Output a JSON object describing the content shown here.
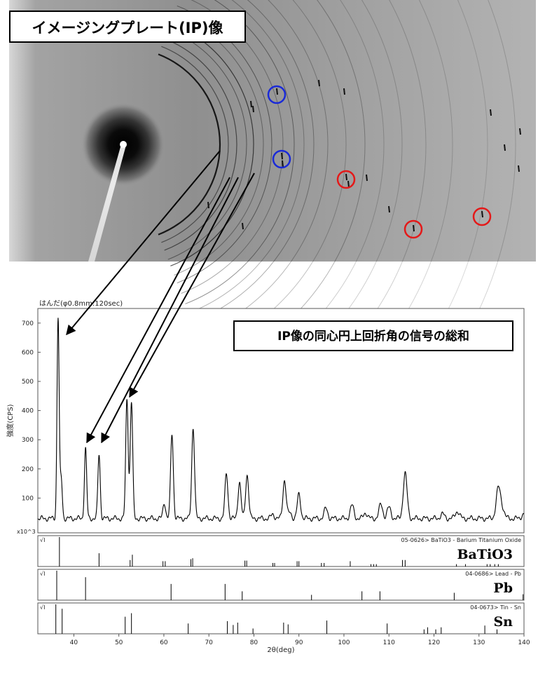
{
  "ip_image": {
    "title": "イメージングプレート(IP)像"
  },
  "chart_data": [
    {
      "type": "line",
      "title": "はんだ(φ0.8mm:120sec)",
      "annotation": "IP像の同心円上回折角の信号の総和",
      "xlabel": "2θ(deg)",
      "ylabel": "強度(CPS)",
      "yunit": "x10^3",
      "xlim": [
        32,
        140
      ],
      "ylim": [
        0,
        750
      ],
      "xticks": [
        40,
        50,
        60,
        70,
        80,
        90,
        100,
        110,
        120,
        130,
        140
      ],
      "yticks": [
        100,
        200,
        300,
        400,
        500,
        600,
        700
      ],
      "baseline": 30,
      "peaks": [
        {
          "x": 36.5,
          "y": 720
        },
        {
          "x": 37.2,
          "y": 165
        },
        {
          "x": 42.6,
          "y": 270
        },
        {
          "x": 45.6,
          "y": 250
        },
        {
          "x": 51.8,
          "y": 440
        },
        {
          "x": 52.8,
          "y": 430
        },
        {
          "x": 60.1,
          "y": 85
        },
        {
          "x": 61.8,
          "y": 320
        },
        {
          "x": 66.5,
          "y": 342
        },
        {
          "x": 73.9,
          "y": 183
        },
        {
          "x": 76.8,
          "y": 155
        },
        {
          "x": 78.5,
          "y": 180
        },
        {
          "x": 84.2,
          "y": 45
        },
        {
          "x": 86.8,
          "y": 162
        },
        {
          "x": 88.0,
          "y": 50
        },
        {
          "x": 90.0,
          "y": 112
        },
        {
          "x": 96.0,
          "y": 65
        },
        {
          "x": 101.8,
          "y": 75
        },
        {
          "x": 104.8,
          "y": 50
        },
        {
          "x": 108.2,
          "y": 78
        },
        {
          "x": 110.0,
          "y": 68
        },
        {
          "x": 113.6,
          "y": 185
        },
        {
          "x": 121.9,
          "y": 45
        },
        {
          "x": 125.2,
          "y": 55
        },
        {
          "x": 134.3,
          "y": 132
        },
        {
          "x": 135.2,
          "y": 60
        },
        {
          "x": 140.0,
          "y": 45
        }
      ],
      "reference_patterns": [
        {
          "label": "05-0626> BaTiO3 - Barium Titanium Oxide",
          "name": "BaTiO3",
          "y_label": "√I",
          "lines": [
            {
              "x": 36.8,
              "h": 1.0
            },
            {
              "x": 45.6,
              "h": 0.45
            },
            {
              "x": 52.5,
              "h": 0.22
            },
            {
              "x": 53.0,
              "h": 0.4
            },
            {
              "x": 59.8,
              "h": 0.18
            },
            {
              "x": 60.3,
              "h": 0.18
            },
            {
              "x": 66.0,
              "h": 0.25
            },
            {
              "x": 66.4,
              "h": 0.28
            },
            {
              "x": 78.0,
              "h": 0.2
            },
            {
              "x": 78.4,
              "h": 0.2
            },
            {
              "x": 84.2,
              "h": 0.12
            },
            {
              "x": 84.6,
              "h": 0.12
            },
            {
              "x": 89.6,
              "h": 0.18
            },
            {
              "x": 90.0,
              "h": 0.18
            },
            {
              "x": 95.0,
              "h": 0.12
            },
            {
              "x": 95.6,
              "h": 0.12
            },
            {
              "x": 101.4,
              "h": 0.18
            },
            {
              "x": 106.0,
              "h": 0.08
            },
            {
              "x": 106.6,
              "h": 0.08
            },
            {
              "x": 107.2,
              "h": 0.08
            },
            {
              "x": 113.0,
              "h": 0.22
            },
            {
              "x": 113.6,
              "h": 0.22
            },
            {
              "x": 125.0,
              "h": 0.08
            },
            {
              "x": 127.0,
              "h": 0.08
            },
            {
              "x": 131.8,
              "h": 0.08
            },
            {
              "x": 132.5,
              "h": 0.08
            },
            {
              "x": 133.5,
              "h": 0.08
            },
            {
              "x": 134.3,
              "h": 0.08
            }
          ]
        },
        {
          "label": "04-0686> Lead - Pb",
          "name": "Pb",
          "y_label": "√I",
          "lines": [
            {
              "x": 36.2,
              "h": 1.0
            },
            {
              "x": 42.6,
              "h": 0.78
            },
            {
              "x": 61.6,
              "h": 0.55
            },
            {
              "x": 73.6,
              "h": 0.55
            },
            {
              "x": 77.4,
              "h": 0.3
            },
            {
              "x": 92.8,
              "h": 0.18
            },
            {
              "x": 104.0,
              "h": 0.3
            },
            {
              "x": 108.0,
              "h": 0.3
            },
            {
              "x": 124.5,
              "h": 0.25
            },
            {
              "x": 139.8,
              "h": 0.2
            }
          ]
        },
        {
          "label": "04-0673> Tin - Sn",
          "name": "Sn",
          "y_label": "√I",
          "lines": [
            {
              "x": 36.0,
              "h": 1.0
            },
            {
              "x": 37.4,
              "h": 0.85
            },
            {
              "x": 51.4,
              "h": 0.58
            },
            {
              "x": 52.8,
              "h": 0.7
            },
            {
              "x": 65.4,
              "h": 0.35
            },
            {
              "x": 74.1,
              "h": 0.43
            },
            {
              "x": 75.4,
              "h": 0.3
            },
            {
              "x": 76.4,
              "h": 0.38
            },
            {
              "x": 79.8,
              "h": 0.18
            },
            {
              "x": 86.6,
              "h": 0.38
            },
            {
              "x": 87.6,
              "h": 0.32
            },
            {
              "x": 96.2,
              "h": 0.45
            },
            {
              "x": 109.6,
              "h": 0.35
            },
            {
              "x": 117.8,
              "h": 0.15
            },
            {
              "x": 118.6,
              "h": 0.22
            },
            {
              "x": 120.4,
              "h": 0.15
            },
            {
              "x": 121.6,
              "h": 0.22
            },
            {
              "x": 131.3,
              "h": 0.28
            },
            {
              "x": 134.0,
              "h": 0.15
            }
          ]
        }
      ]
    }
  ],
  "colors": {
    "ip_background": "#9a9a9a",
    "ring_marker_blue": "#1a2ad8",
    "ring_marker_red": "#e41919",
    "plot_line": "#000000"
  }
}
